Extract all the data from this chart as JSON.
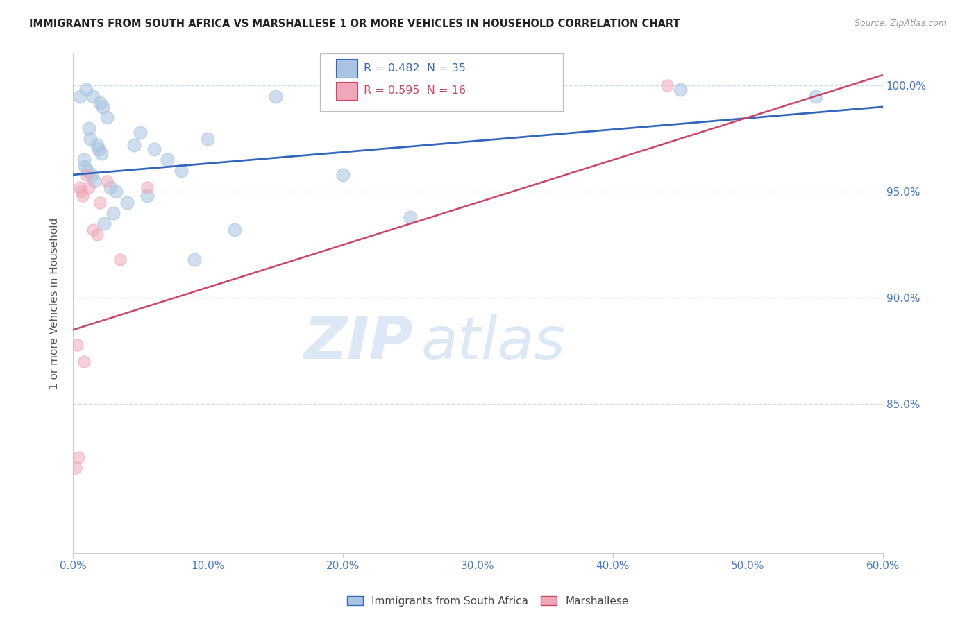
{
  "title": "IMMIGRANTS FROM SOUTH AFRICA VS MARSHALLESE 1 OR MORE VEHICLES IN HOUSEHOLD CORRELATION CHART",
  "source": "Source: ZipAtlas.com",
  "xlabel": "",
  "ylabel": "1 or more Vehicles in Household",
  "xlim": [
    0.0,
    60.0
  ],
  "ylim": [
    78.0,
    101.5
  ],
  "yticks": [
    85.0,
    90.0,
    95.0,
    100.0
  ],
  "xticks": [
    0.0,
    10.0,
    20.0,
    30.0,
    40.0,
    50.0,
    60.0
  ],
  "blue_label": "Immigrants from South Africa",
  "pink_label": "Marshallese",
  "blue_R": 0.482,
  "blue_N": 35,
  "pink_R": 0.595,
  "pink_N": 16,
  "blue_color": "#a8c4e0",
  "pink_color": "#f0a8b8",
  "blue_line_color": "#3366bb",
  "pink_line_color": "#cc4466",
  "axis_color": "#4477cc",
  "grid_color": "#d0dded",
  "background_color": "#ffffff",
  "watermark_zip": "ZIP",
  "watermark_atlas": "atlas",
  "watermark_color": "#dce8f5",
  "blue_x": [
    1.0,
    1.5,
    2.0,
    2.2,
    2.5,
    1.2,
    1.3,
    1.8,
    1.9,
    2.1,
    0.8,
    0.9,
    1.1,
    1.4,
    1.6,
    2.8,
    3.2,
    4.0,
    5.0,
    6.0,
    7.0,
    8.0,
    10.0,
    15.0,
    20.0,
    25.0,
    2.3,
    3.0,
    4.5,
    5.5,
    45.0,
    55.0,
    9.0,
    12.0,
    0.5
  ],
  "blue_y": [
    99.8,
    99.5,
    99.2,
    99.0,
    98.5,
    98.0,
    97.5,
    97.2,
    97.0,
    96.8,
    96.5,
    96.2,
    96.0,
    95.8,
    95.5,
    95.2,
    95.0,
    94.5,
    97.8,
    97.0,
    96.5,
    96.0,
    97.5,
    99.5,
    95.8,
    93.8,
    93.5,
    94.0,
    97.2,
    94.8,
    99.8,
    99.5,
    91.8,
    93.2,
    99.5
  ],
  "pink_x": [
    0.3,
    0.8,
    1.0,
    1.2,
    1.5,
    2.0,
    2.5,
    3.5,
    0.5,
    0.7,
    1.8,
    5.5,
    0.2,
    0.4,
    44.0,
    0.6
  ],
  "pink_y": [
    87.8,
    87.0,
    95.8,
    95.2,
    93.2,
    94.5,
    95.5,
    91.8,
    95.2,
    94.8,
    93.0,
    95.2,
    82.0,
    82.5,
    100.0,
    95.0
  ],
  "blue_line_x": [
    0.0,
    60.0
  ],
  "blue_line_y": [
    95.8,
    99.0
  ],
  "pink_line_x": [
    0.0,
    60.0
  ],
  "pink_line_y": [
    88.5,
    100.5
  ]
}
